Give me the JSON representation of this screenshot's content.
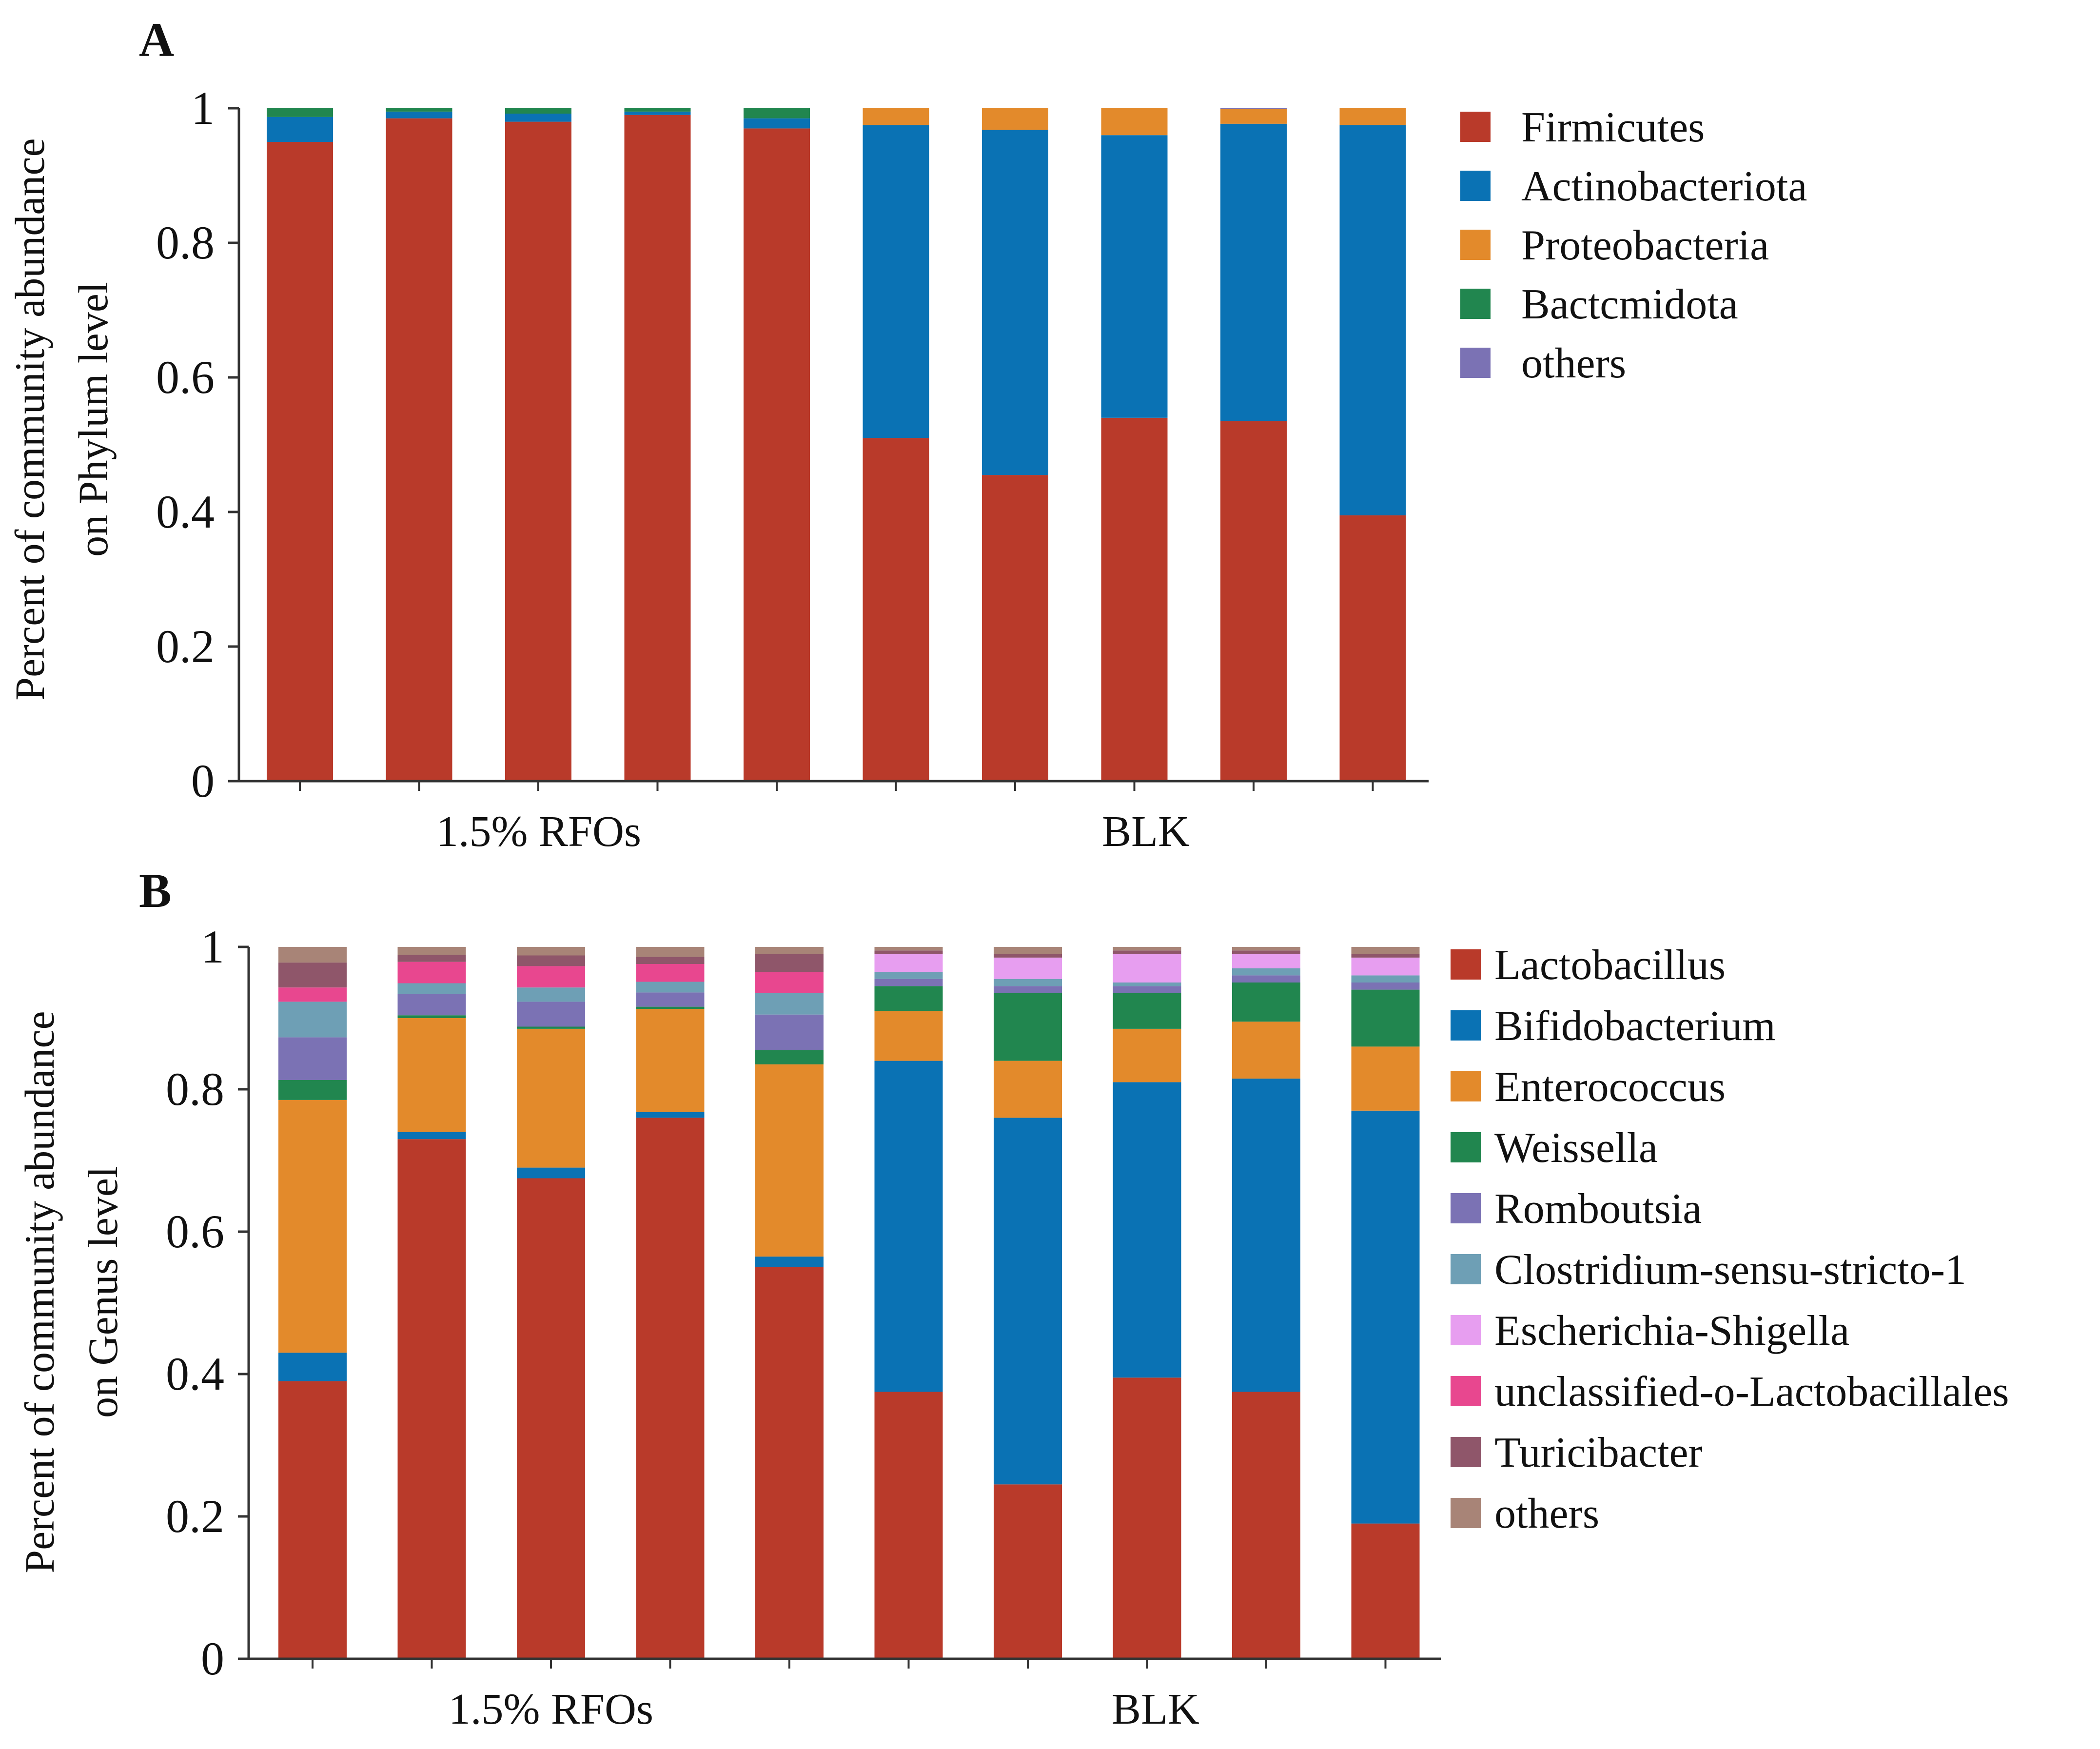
{
  "chart_data": [
    {
      "panel": "A",
      "type": "bar",
      "stacked": true,
      "ylabel_line1": "Percent of community abundance",
      "ylabel_line2": "on Phylum level",
      "ylim": [
        0,
        1
      ],
      "yticks": [
        "0",
        "0.2",
        "0.4",
        "0.6",
        "0.8",
        "1"
      ],
      "groups": [
        {
          "label": "1.5% RFOs",
          "bar_indices": [
            0,
            1,
            2,
            3,
            4
          ]
        },
        {
          "label": "BLK",
          "bar_indices": [
            5,
            6,
            7,
            8,
            9
          ]
        }
      ],
      "series": [
        {
          "name": "Firmicutes",
          "color": "#B93A2A",
          "values": [
            0.95,
            0.985,
            0.98,
            0.99,
            0.97,
            0.51,
            0.455,
            0.54,
            0.535,
            0.395
          ]
        },
        {
          "name": "Actinobacteriota",
          "color": "#0A72B4",
          "values": [
            0.037,
            0.01,
            0.012,
            0.005,
            0.015,
            0.465,
            0.513,
            0.42,
            0.442,
            0.58
          ]
        },
        {
          "name": "Proteobacteria",
          "color": "#E38A2B",
          "values": [
            0.0,
            0.0,
            0.0,
            0.0,
            0.0,
            0.025,
            0.032,
            0.04,
            0.022,
            0.025
          ]
        },
        {
          "name": "Bactcmidota",
          "color": "#21864F",
          "values": [
            0.013,
            0.005,
            0.008,
            0.005,
            0.015,
            0.0,
            0.0,
            0.0,
            0.0,
            0.0
          ]
        },
        {
          "name": "others",
          "color": "#7B72B4",
          "values": [
            0.0,
            0.0,
            0.0,
            0.0,
            0.0,
            0.0,
            0.0,
            0.0,
            0.001,
            0.0
          ]
        }
      ]
    },
    {
      "panel": "B",
      "type": "bar",
      "stacked": true,
      "ylabel_line1": "Percent of community abundance",
      "ylabel_line2": "on Genus level",
      "ylim": [
        0,
        1
      ],
      "yticks": [
        "0",
        "0.2",
        "0.4",
        "0.6",
        "0.8",
        "1"
      ],
      "groups": [
        {
          "label": "1.5% RFOs",
          "bar_indices": [
            0,
            1,
            2,
            3,
            4
          ]
        },
        {
          "label": "BLK",
          "bar_indices": [
            5,
            6,
            7,
            8,
            9
          ]
        }
      ],
      "series": [
        {
          "name": "Lactobacillus",
          "color": "#B93A2A",
          "values": [
            0.39,
            0.73,
            0.675,
            0.76,
            0.55,
            0.375,
            0.245,
            0.395,
            0.375,
            0.19
          ]
        },
        {
          "name": "Bifidobacterium",
          "color": "#0A72B4",
          "values": [
            0.04,
            0.01,
            0.015,
            0.008,
            0.015,
            0.465,
            0.515,
            0.415,
            0.44,
            0.58
          ]
        },
        {
          "name": "Enterococcus",
          "color": "#E38A2B",
          "values": [
            0.355,
            0.16,
            0.195,
            0.145,
            0.27,
            0.07,
            0.08,
            0.075,
            0.08,
            0.09
          ]
        },
        {
          "name": "Weissella",
          "color": "#21864F",
          "values": [
            0.028,
            0.004,
            0.003,
            0.003,
            0.02,
            0.035,
            0.095,
            0.05,
            0.055,
            0.08
          ]
        },
        {
          "name": "Romboutsia",
          "color": "#7B72B4",
          "values": [
            0.06,
            0.03,
            0.035,
            0.02,
            0.05,
            0.01,
            0.01,
            0.01,
            0.01,
            0.01
          ]
        },
        {
          "name": "Clostridium-sensu-stricto-1",
          "color": "#6E9FB5",
          "values": [
            0.05,
            0.015,
            0.02,
            0.015,
            0.03,
            0.01,
            0.01,
            0.005,
            0.01,
            0.01
          ]
        },
        {
          "name": "Escherichia-Shigella",
          "color": "#E79EF0",
          "values": [
            0.0,
            0.0,
            0.0,
            0.0,
            0.0,
            0.025,
            0.03,
            0.04,
            0.02,
            0.025
          ]
        },
        {
          "name": "unclassified-o-Lactobacillales",
          "color": "#E8478F",
          "values": [
            0.02,
            0.03,
            0.03,
            0.025,
            0.03,
            0.0,
            0.0,
            0.0,
            0.0,
            0.0
          ]
        },
        {
          "name": "Turicibacter",
          "color": "#8F566A",
          "values": [
            0.035,
            0.01,
            0.015,
            0.01,
            0.025,
            0.005,
            0.005,
            0.005,
            0.005,
            0.005
          ]
        },
        {
          "name": "others",
          "color": "#A88477",
          "values": [
            0.022,
            0.011,
            0.012,
            0.014,
            0.01,
            0.005,
            0.01,
            0.005,
            0.005,
            0.01
          ]
        }
      ]
    }
  ]
}
